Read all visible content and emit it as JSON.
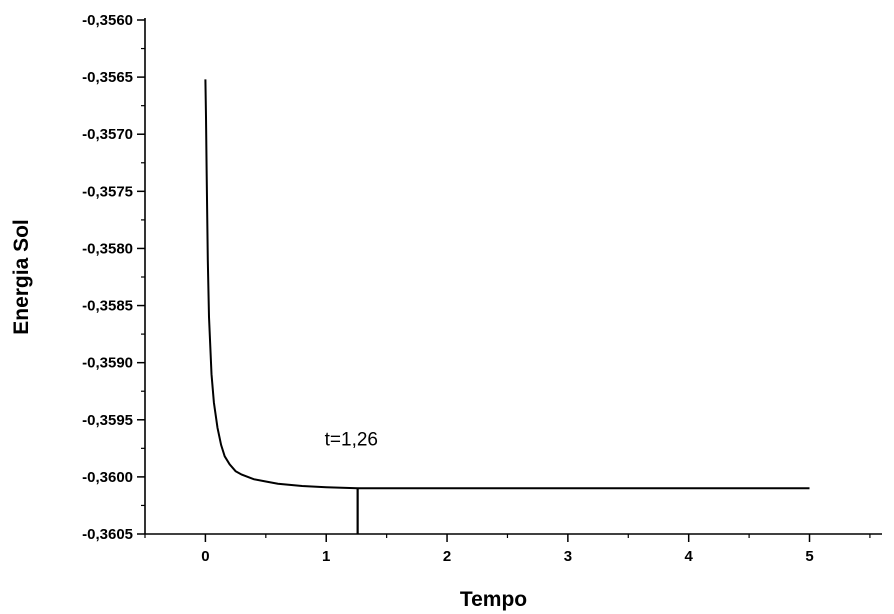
{
  "chart_data": {
    "type": "line",
    "xlabel": "Tempo",
    "ylabel": "Energia Sol",
    "xlim": [
      -0.5,
      5.6
    ],
    "ylim": [
      -0.3605,
      -0.356
    ],
    "x_ticks": [
      0,
      1,
      2,
      3,
      4,
      5
    ],
    "x_tick_labels": [
      "0",
      "1",
      "2",
      "3",
      "4",
      "5"
    ],
    "y_ticks": [
      -0.356,
      -0.3565,
      -0.357,
      -0.3575,
      -0.358,
      -0.3585,
      -0.359,
      -0.3595,
      -0.36,
      -0.3605
    ],
    "y_tick_labels": [
      "-0,3560",
      "-0,3565",
      "-0,3570",
      "-0,3575",
      "-0,3580",
      "-0,3585",
      "-0,3590",
      "-0,3595",
      "-0,3600",
      "-0,3605"
    ],
    "grid": false,
    "series": [
      {
        "x": [
          0,
          0.005,
          0.01,
          0.02,
          0.03,
          0.05,
          0.07,
          0.1,
          0.13,
          0.16,
          0.2,
          0.25,
          0.3,
          0.4,
          0.5,
          0.6,
          0.8,
          1.0,
          1.26,
          1.5,
          2.0,
          3.0,
          4.0,
          5.0
        ],
        "y": [
          -0.35652,
          -0.35685,
          -0.3573,
          -0.3581,
          -0.3586,
          -0.3591,
          -0.35935,
          -0.35957,
          -0.35972,
          -0.35982,
          -0.35989,
          -0.35995,
          -0.35998,
          -0.36002,
          -0.36004,
          -0.36006,
          -0.36008,
          -0.36009,
          -0.3601,
          -0.3601,
          -0.3601,
          -0.3601,
          -0.3601,
          -0.3601
        ]
      }
    ],
    "annotations": [
      {
        "text": "t=1,26",
        "x": 1.26,
        "y": -0.3601
      }
    ]
  }
}
